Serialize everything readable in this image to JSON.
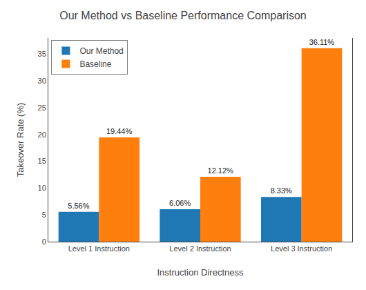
{
  "chart_data": {
    "type": "bar",
    "title": "Our Method vs Baseline Performance Comparison",
    "xlabel": "Instruction Directness",
    "ylabel": "Takeover Rate (%)",
    "categories": [
      "Level 1 Instruction",
      "Level 2 Instruction",
      "Level 3 Instruction"
    ],
    "series": [
      {
        "name": "Our Method",
        "color": "#1f77b4",
        "values": [
          5.56,
          6.06,
          8.33
        ],
        "value_labels": [
          "5.56%",
          "6.06%",
          "8.33%"
        ]
      },
      {
        "name": "Baseline",
        "color": "#ff7f0e",
        "values": [
          19.44,
          12.12,
          36.11
        ],
        "value_labels": [
          "19.44%",
          "12.12%",
          "36.11%"
        ]
      }
    ],
    "ylim": [
      0,
      38
    ],
    "yticks": [
      0,
      5,
      10,
      15,
      20,
      25,
      30,
      35
    ],
    "grid": false,
    "legend": "upper left",
    "data_labels": true
  }
}
